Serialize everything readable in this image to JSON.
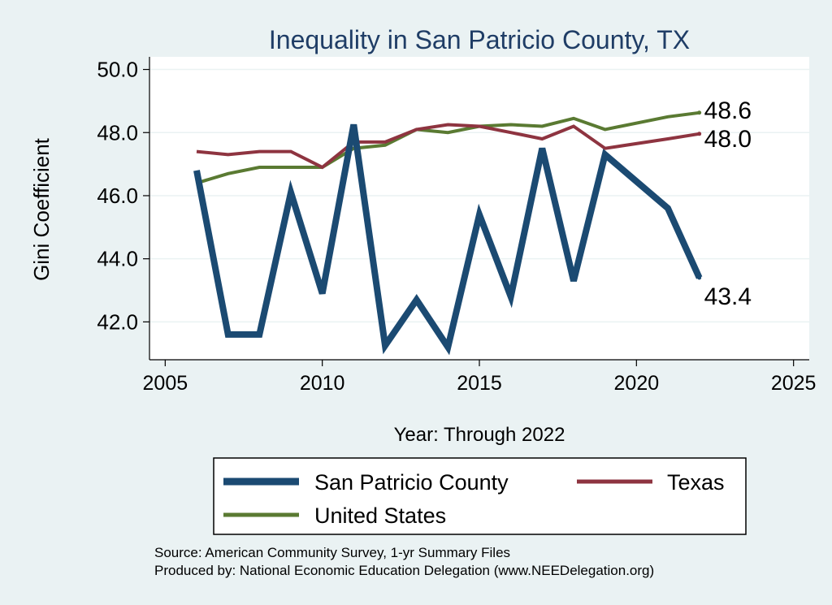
{
  "chart_data": {
    "type": "line",
    "title": "Inequality in San Patricio County, TX",
    "xlabel": "Year: Through 2022",
    "ylabel": "Gini Coefficient",
    "xlim": [
      2004.5,
      2025.5
    ],
    "ylim": [
      40.8,
      50.4
    ],
    "xticks": [
      2005,
      2010,
      2015,
      2020,
      2025
    ],
    "yticks": [
      42.0,
      44.0,
      46.0,
      48.0,
      50.0
    ],
    "ytick_labels": [
      "42.0",
      "44.0",
      "46.0",
      "48.0",
      "50.0"
    ],
    "grid": "horizontal",
    "legend_position": "bottom",
    "series": [
      {
        "name": "San Patricio County",
        "color": "#1b4a72",
        "x": [
          2006,
          2007,
          2008,
          2009,
          2010,
          2011,
          2012,
          2013,
          2014,
          2015,
          2016,
          2017,
          2018,
          2019,
          2021,
          2022
        ],
        "values": [
          46.8,
          41.6,
          41.6,
          46.1,
          42.9,
          48.25,
          41.25,
          42.7,
          41.2,
          45.4,
          42.8,
          47.5,
          43.3,
          47.3,
          45.6,
          43.4
        ],
        "end_label": "43.4"
      },
      {
        "name": "Texas",
        "color": "#8e3440",
        "x": [
          2006,
          2007,
          2008,
          2009,
          2010,
          2011,
          2012,
          2013,
          2014,
          2015,
          2016,
          2017,
          2018,
          2019,
          2021,
          2022
        ],
        "values": [
          47.4,
          47.3,
          47.4,
          47.4,
          46.9,
          47.7,
          47.7,
          48.1,
          48.25,
          48.2,
          48.0,
          47.8,
          48.2,
          47.5,
          47.8,
          47.96
        ],
        "end_label": "48.0"
      },
      {
        "name": "United States",
        "color": "#5a7a32",
        "x": [
          2006,
          2007,
          2008,
          2009,
          2010,
          2011,
          2012,
          2013,
          2014,
          2015,
          2016,
          2017,
          2018,
          2019,
          2021,
          2022
        ],
        "values": [
          46.4,
          46.7,
          46.9,
          46.9,
          46.9,
          47.5,
          47.6,
          48.1,
          48.0,
          48.2,
          48.25,
          48.2,
          48.45,
          48.1,
          48.5,
          48.63
        ],
        "end_label": "48.6"
      }
    ]
  },
  "notes": {
    "source": "Source: American Community Survey, 1-yr Summary Files",
    "produced_by": "Produced by: National Economic Education Delegation (www.NEEDelegation.org)"
  }
}
